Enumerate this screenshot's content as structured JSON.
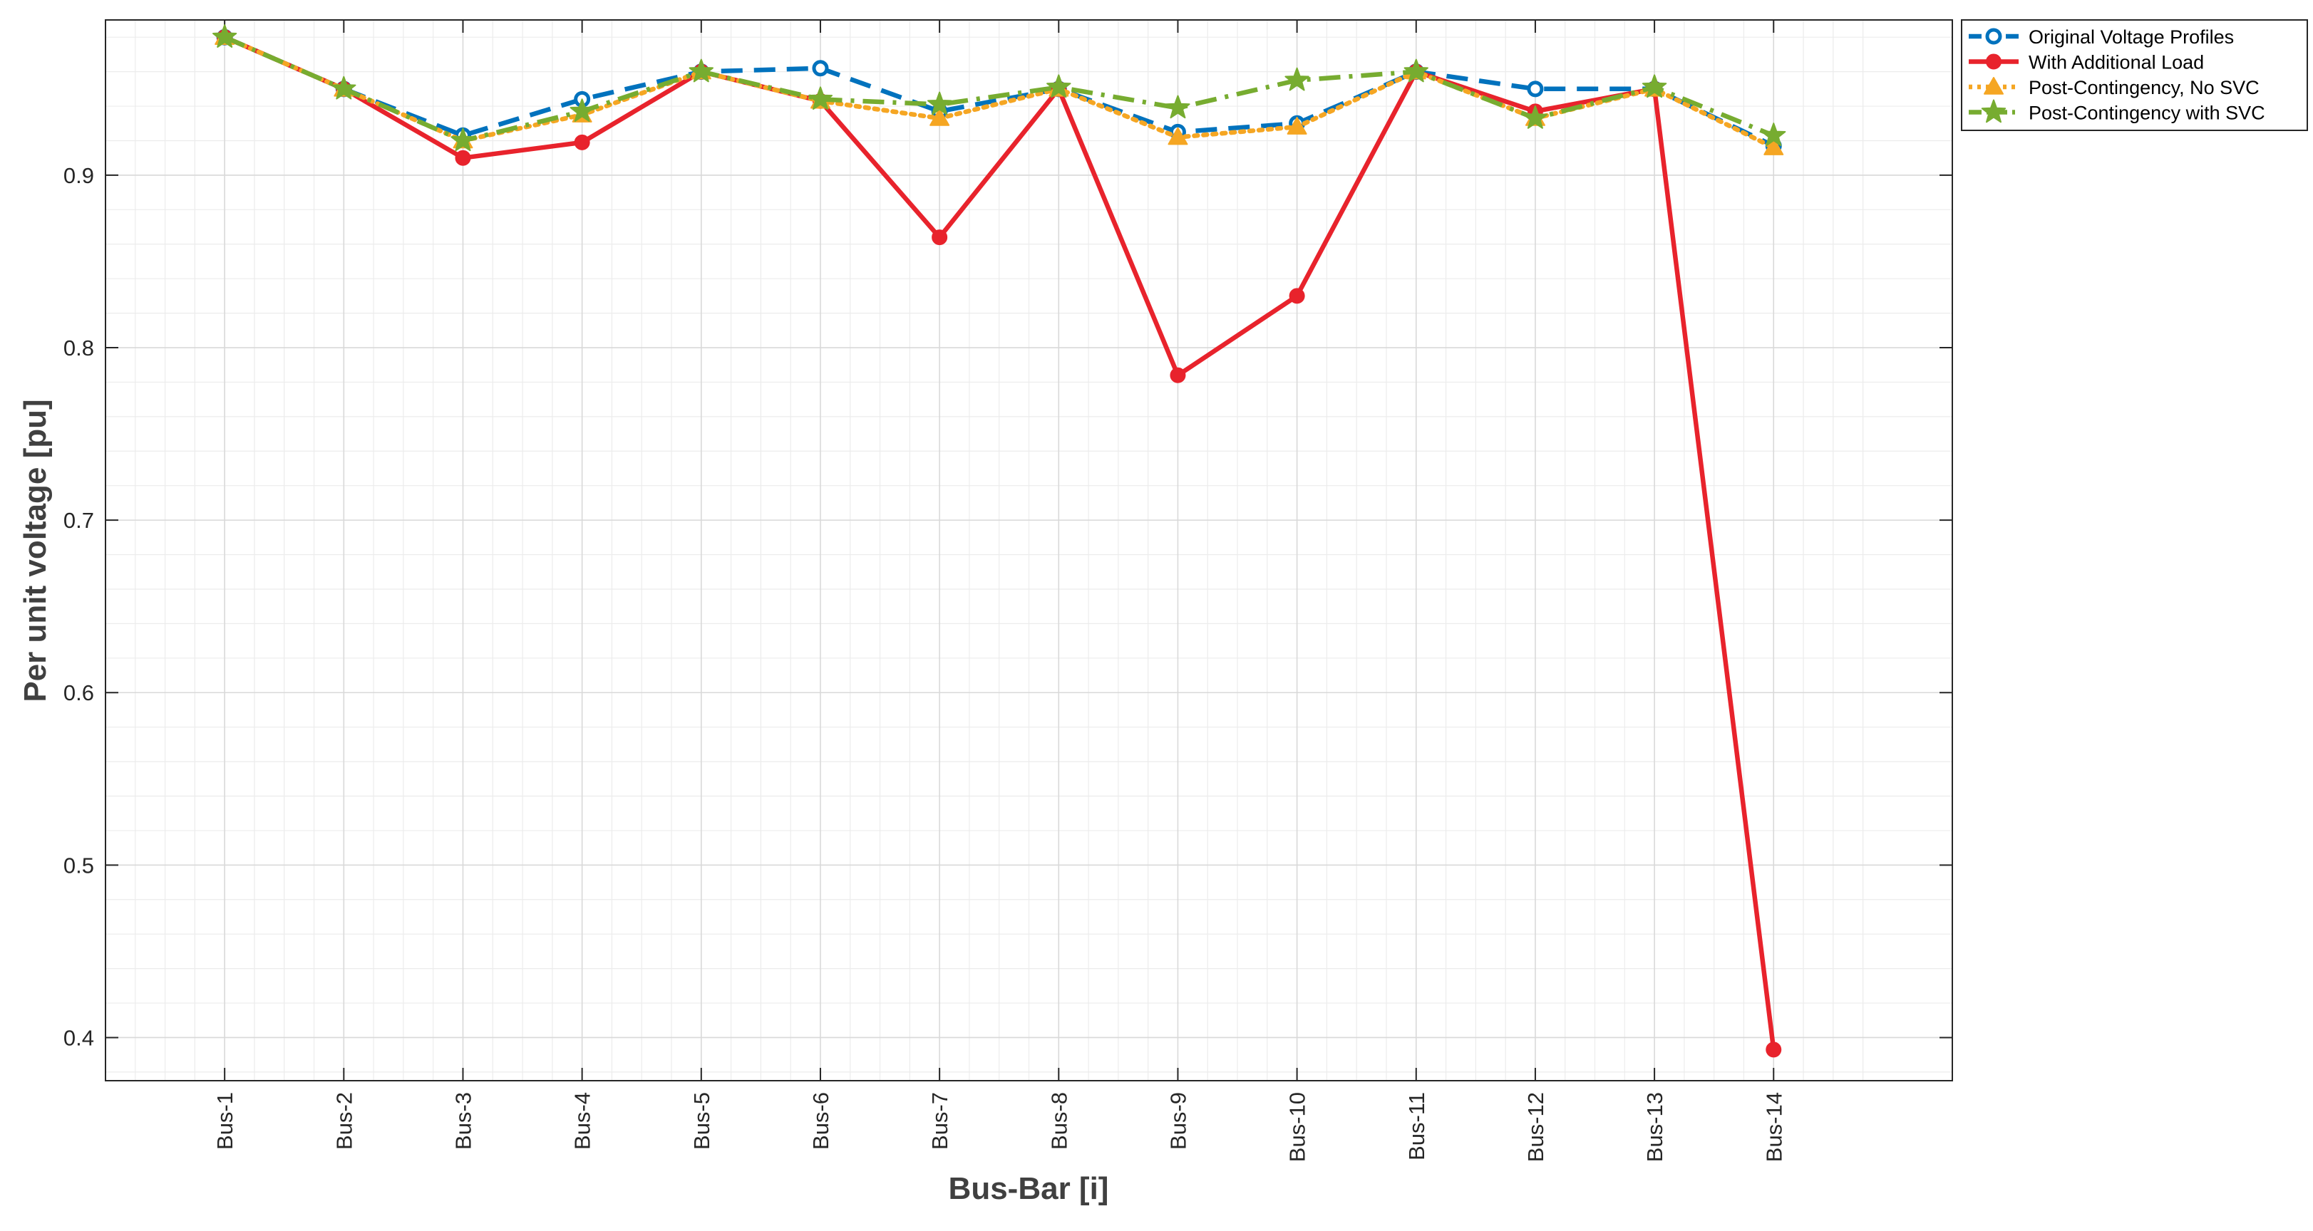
{
  "chart_data": {
    "type": "line",
    "title": "",
    "xlabel": "Bus-Bar [i]",
    "ylabel": "Per unit voltage [pu]",
    "categories": [
      "Bus-1",
      "Bus-2",
      "Bus-3",
      "Bus-4",
      "Bus-5",
      "Bus-6",
      "Bus-7",
      "Bus-8",
      "Bus-9",
      "Bus-10",
      "Bus-11",
      "Bus-12",
      "Bus-13",
      "Bus-14"
    ],
    "ylim": [
      0.375,
      0.99
    ],
    "yticks": [
      0.4,
      0.5,
      0.6,
      0.7,
      0.8,
      0.9
    ],
    "ytick_labels": [
      "0.4",
      "0.5",
      "0.6",
      "0.7",
      "0.8",
      "0.9"
    ],
    "grid": true,
    "minor_grid": true,
    "legend_position": "outside top-right",
    "series": [
      {
        "name": "Original Voltage Profiles",
        "color": "#0072BD",
        "line_style": "dashed",
        "marker": "circle-open",
        "values": [
          0.98,
          0.95,
          0.923,
          0.944,
          0.96,
          0.962,
          0.937,
          0.95,
          0.925,
          0.93,
          0.96,
          0.95,
          0.95,
          0.917
        ]
      },
      {
        "name": "With Additional Load",
        "color": "#E8232C",
        "line_style": "solid",
        "marker": "circle-filled",
        "values": [
          0.98,
          0.95,
          0.91,
          0.919,
          0.96,
          0.943,
          0.864,
          0.95,
          0.784,
          0.83,
          0.96,
          0.937,
          0.95,
          0.393
        ]
      },
      {
        "name": "Post-Contingency, No SVC",
        "color": "#F5A623",
        "line_style": "dotted",
        "marker": "triangle",
        "values": [
          0.98,
          0.95,
          0.92,
          0.935,
          0.96,
          0.943,
          0.933,
          0.95,
          0.922,
          0.928,
          0.96,
          0.933,
          0.95,
          0.916
        ]
      },
      {
        "name": "Post-Contingency with SVC",
        "color": "#77AC30",
        "line_style": "dashdot",
        "marker": "star",
        "values": [
          0.98,
          0.95,
          0.92,
          0.937,
          0.96,
          0.944,
          0.941,
          0.951,
          0.939,
          0.955,
          0.96,
          0.933,
          0.951,
          0.923
        ]
      }
    ]
  }
}
